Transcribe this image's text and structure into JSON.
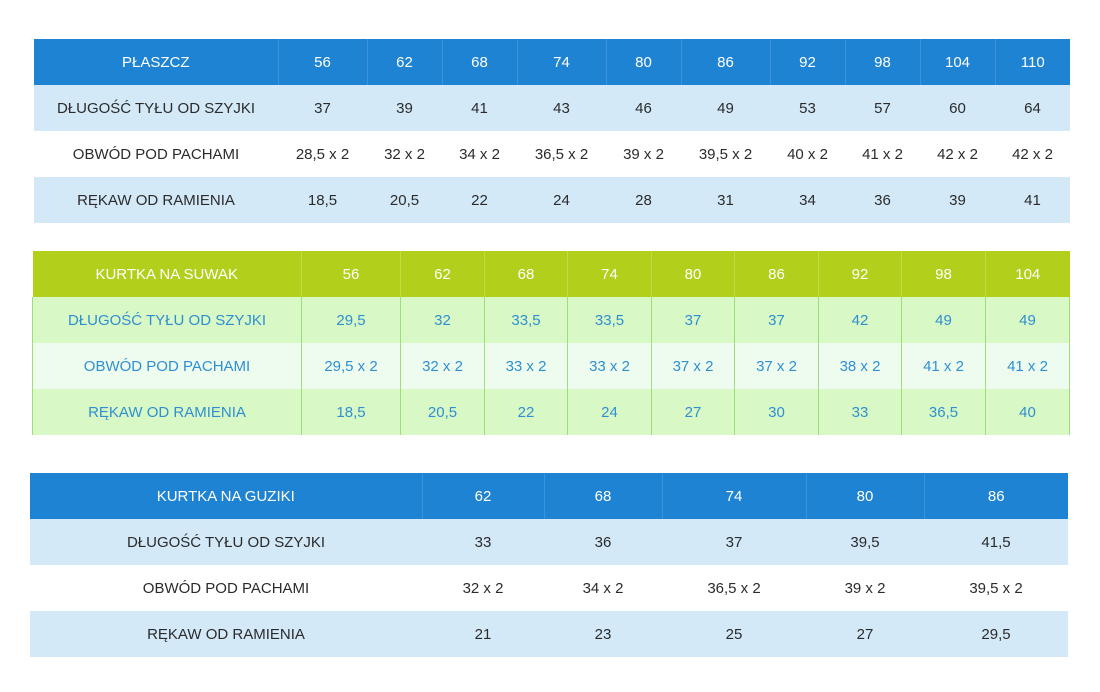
{
  "tables": [
    {
      "title": "PŁASZCZ",
      "sizes": [
        "56",
        "62",
        "68",
        "74",
        "80",
        "86",
        "92",
        "98",
        "104",
        "110"
      ],
      "rows": [
        {
          "label": "DŁUGOŚĆ TYŁU OD SZYJKI",
          "values": [
            "37",
            "39",
            "41",
            "43",
            "46",
            "49",
            "53",
            "57",
            "60",
            "64"
          ]
        },
        {
          "label": "OBWÓD POD PACHAMI",
          "values": [
            "28,5 x 2",
            "32 x 2",
            "34 x 2",
            "36,5 x 2",
            "39 x 2",
            "39,5 x 2",
            "40 x 2",
            "41 x 2",
            "42 x 2",
            "42 x 2"
          ]
        },
        {
          "label": "RĘKAW OD RAMIENIA",
          "values": [
            "18,5",
            "20,5",
            "22",
            "24",
            "28",
            "31",
            "34",
            "36",
            "39",
            "41"
          ]
        }
      ]
    },
    {
      "title": "KURTKA NA SUWAK",
      "sizes": [
        "56",
        "62",
        "68",
        "74",
        "80",
        "86",
        "92",
        "98",
        "104"
      ],
      "rows": [
        {
          "label": "DŁUGOŚĆ TYŁU OD SZYJKI",
          "values": [
            "29,5",
            "32",
            "33,5",
            "33,5",
            "37",
            "37",
            "42",
            "49",
            "49"
          ]
        },
        {
          "label": "OBWÓD POD PACHAMI",
          "values": [
            "29,5 x 2",
            "32 x 2",
            "33 x 2",
            "33 x 2",
            "37 x 2",
            "37 x 2",
            "38 x 2",
            "41 x 2",
            "41 x 2"
          ]
        },
        {
          "label": "RĘKAW OD RAMIENIA",
          "values": [
            "18,5",
            "20,5",
            "22",
            "24",
            "27",
            "30",
            "33",
            "36,5",
            "40"
          ]
        }
      ]
    },
    {
      "title": "KURTKA NA GUZIKI",
      "sizes": [
        "62",
        "68",
        "74",
        "80",
        "86"
      ],
      "rows": [
        {
          "label": "DŁUGOŚĆ TYŁU OD SZYJKI",
          "values": [
            "33",
            "36",
            "37",
            "39,5",
            "41,5"
          ]
        },
        {
          "label": "OBWÓD POD PACHAMI",
          "values": [
            "32 x 2",
            "34 x 2",
            "36,5 x 2",
            "39 x 2",
            "39,5 x 2"
          ]
        },
        {
          "label": "RĘKAW OD RAMIENIA",
          "values": [
            "21",
            "23",
            "25",
            "27",
            "29,5"
          ]
        }
      ]
    }
  ],
  "colors": {
    "blue_header": "#1f83d3",
    "blue_row": "#d3e9f8",
    "green_header": "#b2cf1b",
    "green_row": "#d8f8c5",
    "green_row_alt": "#eefcf0",
    "green_text": "#2f8fd3"
  }
}
